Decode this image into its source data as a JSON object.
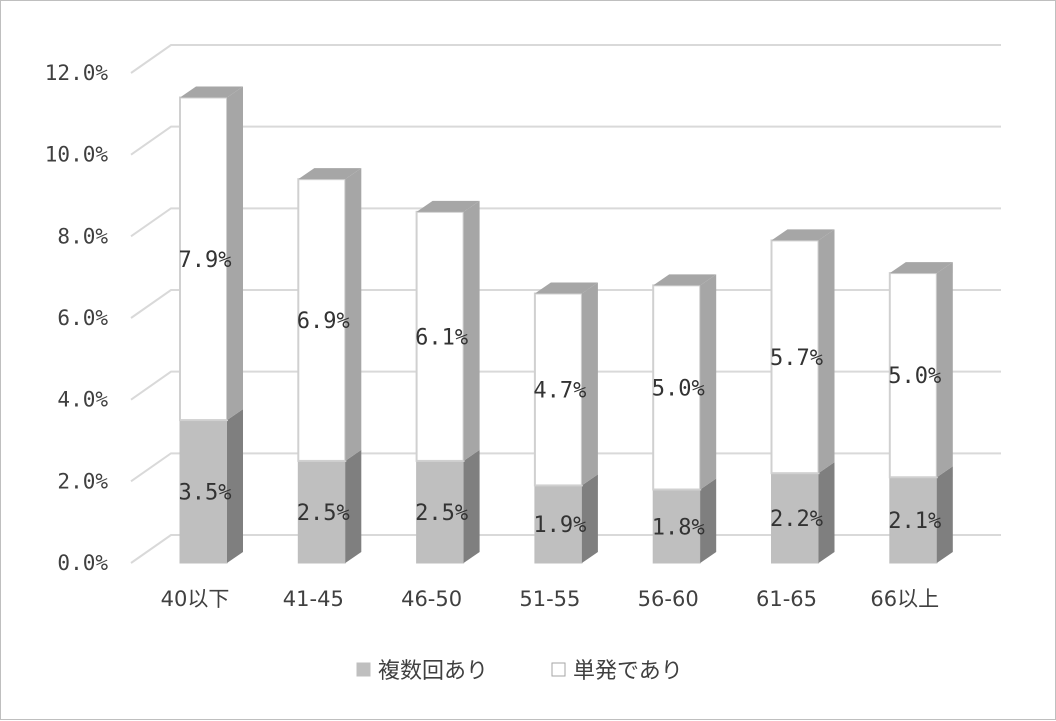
{
  "chart_data": {
    "type": "bar",
    "stacked": true,
    "three_d": true,
    "categories": [
      "40以下",
      "41-45",
      "46-50",
      "51-55",
      "56-60",
      "61-65",
      "66以上"
    ],
    "series": [
      {
        "name": "複数回あり",
        "values": [
          3.5,
          2.5,
          2.5,
          1.9,
          1.8,
          2.2,
          2.1
        ],
        "labels": [
          "3.5%",
          "2.5%",
          "2.5%",
          "1.9%",
          "1.8%",
          "2.2%",
          "2.1%"
        ],
        "color": "#bfbfbf"
      },
      {
        "name": "単発であり",
        "values": [
          7.9,
          6.9,
          6.1,
          4.7,
          5.0,
          5.7,
          5.0
        ],
        "labels": [
          "7.9%",
          "6.9%",
          "6.1%",
          "4.7%",
          "5.0%",
          "5.7%",
          "5.0%"
        ],
        "color": "#ffffff"
      }
    ],
    "y_ticks": [
      "0.0%",
      "2.0%",
      "4.0%",
      "6.0%",
      "8.0%",
      "10.0%",
      "12.0%"
    ],
    "ylim": [
      0,
      12
    ],
    "grid": true,
    "legend_position": "bottom"
  }
}
